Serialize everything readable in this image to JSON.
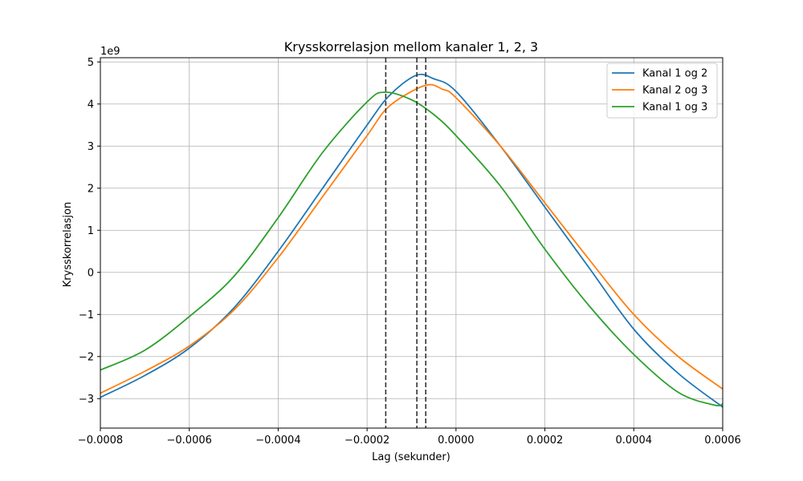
{
  "chart_data": {
    "type": "line",
    "title": "Krysskorrelasjon mellom kanaler 1, 2, 3",
    "xlabel": "Lag (sekunder)",
    "ylabel": "Krysskorrelasjon",
    "y_scale_label": "1e9",
    "xlim": [
      -0.0008,
      0.0006
    ],
    "ylim": [
      -3.7,
      5.1
    ],
    "grid": true,
    "legend_position": "top-right",
    "x_ticks": [
      -0.0008,
      -0.0006,
      -0.0004,
      -0.0002,
      0.0,
      0.0002,
      0.0004,
      0.0006
    ],
    "x_tick_labels": [
      "−0.0008",
      "−0.0006",
      "−0.0004",
      "−0.0002",
      "0.0000",
      "0.0002",
      "0.0004",
      "0.0006"
    ],
    "y_ticks": [
      -3,
      -2,
      -1,
      0,
      1,
      2,
      3,
      4,
      5
    ],
    "y_tick_labels": [
      "−3",
      "−2",
      "−1",
      "0",
      "1",
      "2",
      "3",
      "4",
      "5"
    ],
    "series": [
      {
        "name": "Kanal 1 og 2",
        "color": "#1f77b4",
        "x": [
          -0.0008,
          -0.0007,
          -0.0006,
          -0.0005,
          -0.0004,
          -0.0003,
          -0.0002,
          -0.00015,
          -9e-05,
          -5e-05,
          0.0,
          0.0001,
          0.0002,
          0.0003,
          0.0004,
          0.0005,
          0.0006
        ],
        "y": [
          -2.97,
          -2.45,
          -1.8,
          -0.85,
          0.5,
          2.0,
          3.5,
          4.2,
          4.68,
          4.6,
          4.3,
          3.0,
          1.55,
          0.1,
          -1.35,
          -2.4,
          -3.2
        ]
      },
      {
        "name": "Kanal 2 og 3",
        "color": "#ff7f0e",
        "x": [
          -0.0008,
          -0.0007,
          -0.0006,
          -0.0005,
          -0.0004,
          -0.0003,
          -0.0002,
          -0.00015,
          -7e-05,
          -3e-05,
          0.0,
          0.0001,
          0.0002,
          0.0003,
          0.0004,
          0.0005,
          0.0006
        ],
        "y": [
          -2.87,
          -2.35,
          -1.75,
          -0.9,
          0.35,
          1.8,
          3.25,
          3.95,
          4.44,
          4.35,
          4.15,
          3.0,
          1.65,
          0.3,
          -1.0,
          -2.0,
          -2.77
        ]
      },
      {
        "name": "Kanal 1 og 3",
        "color": "#2ca02c",
        "x": [
          -0.0008,
          -0.0007,
          -0.0006,
          -0.0005,
          -0.0004,
          -0.0003,
          -0.0002,
          -0.00016,
          -0.0001,
          -5e-05,
          0.0,
          0.0001,
          0.0002,
          0.0003,
          0.0004,
          0.0005,
          0.00058,
          0.0006
        ],
        "y": [
          -2.32,
          -1.85,
          -1.05,
          -0.1,
          1.3,
          2.85,
          4.05,
          4.28,
          4.1,
          3.75,
          3.25,
          2.05,
          0.55,
          -0.8,
          -1.95,
          -2.85,
          -3.15,
          -3.13
        ]
      }
    ],
    "vertical_lines": [
      -0.000158,
      -8.8e-05,
      -6.8e-05
    ]
  }
}
